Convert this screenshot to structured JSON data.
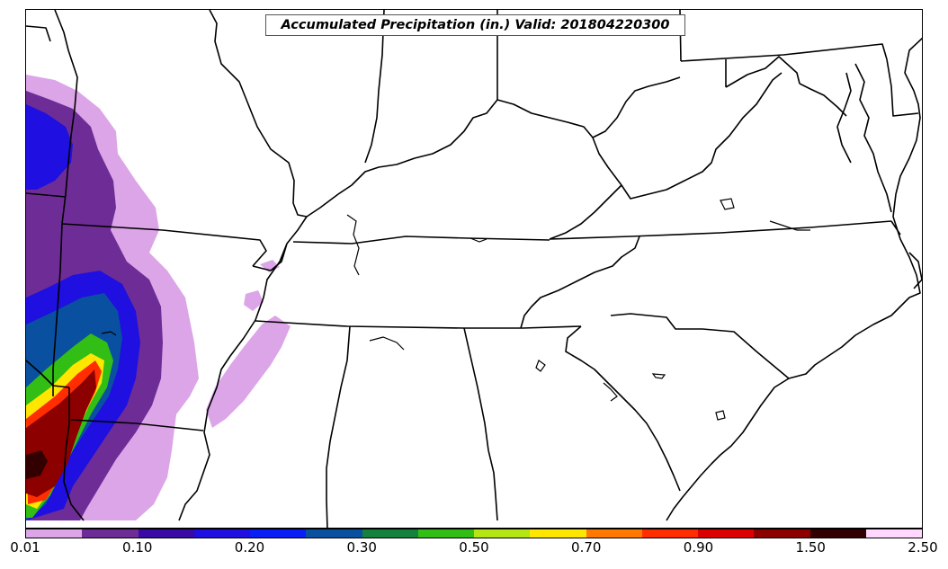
{
  "title": "Accumulated Precipitation (in.) Valid: 201804220300",
  "colorbar": {
    "colors": [
      "#dca5e8",
      "#6e2d96",
      "#3a0aa5",
      "#1f0fe0",
      "#0a1ef5",
      "#0a50a0",
      "#14823c",
      "#32be14",
      "#b4e614",
      "#ffe600",
      "#ff7800",
      "#ff2d00",
      "#dc0000",
      "#8c0000",
      "#320000",
      "#ffd7ff"
    ],
    "tick_labels": [
      "0.01",
      "0.10",
      "0.20",
      "0.30",
      "0.50",
      "0.70",
      "0.90",
      "1.50",
      "2.50"
    ]
  },
  "map": {
    "variable": "accumulated-precipitation",
    "units": "in.",
    "layers": [
      "state-boundaries",
      "coastlines",
      "lakes",
      "precipitation-contours"
    ]
  }
}
